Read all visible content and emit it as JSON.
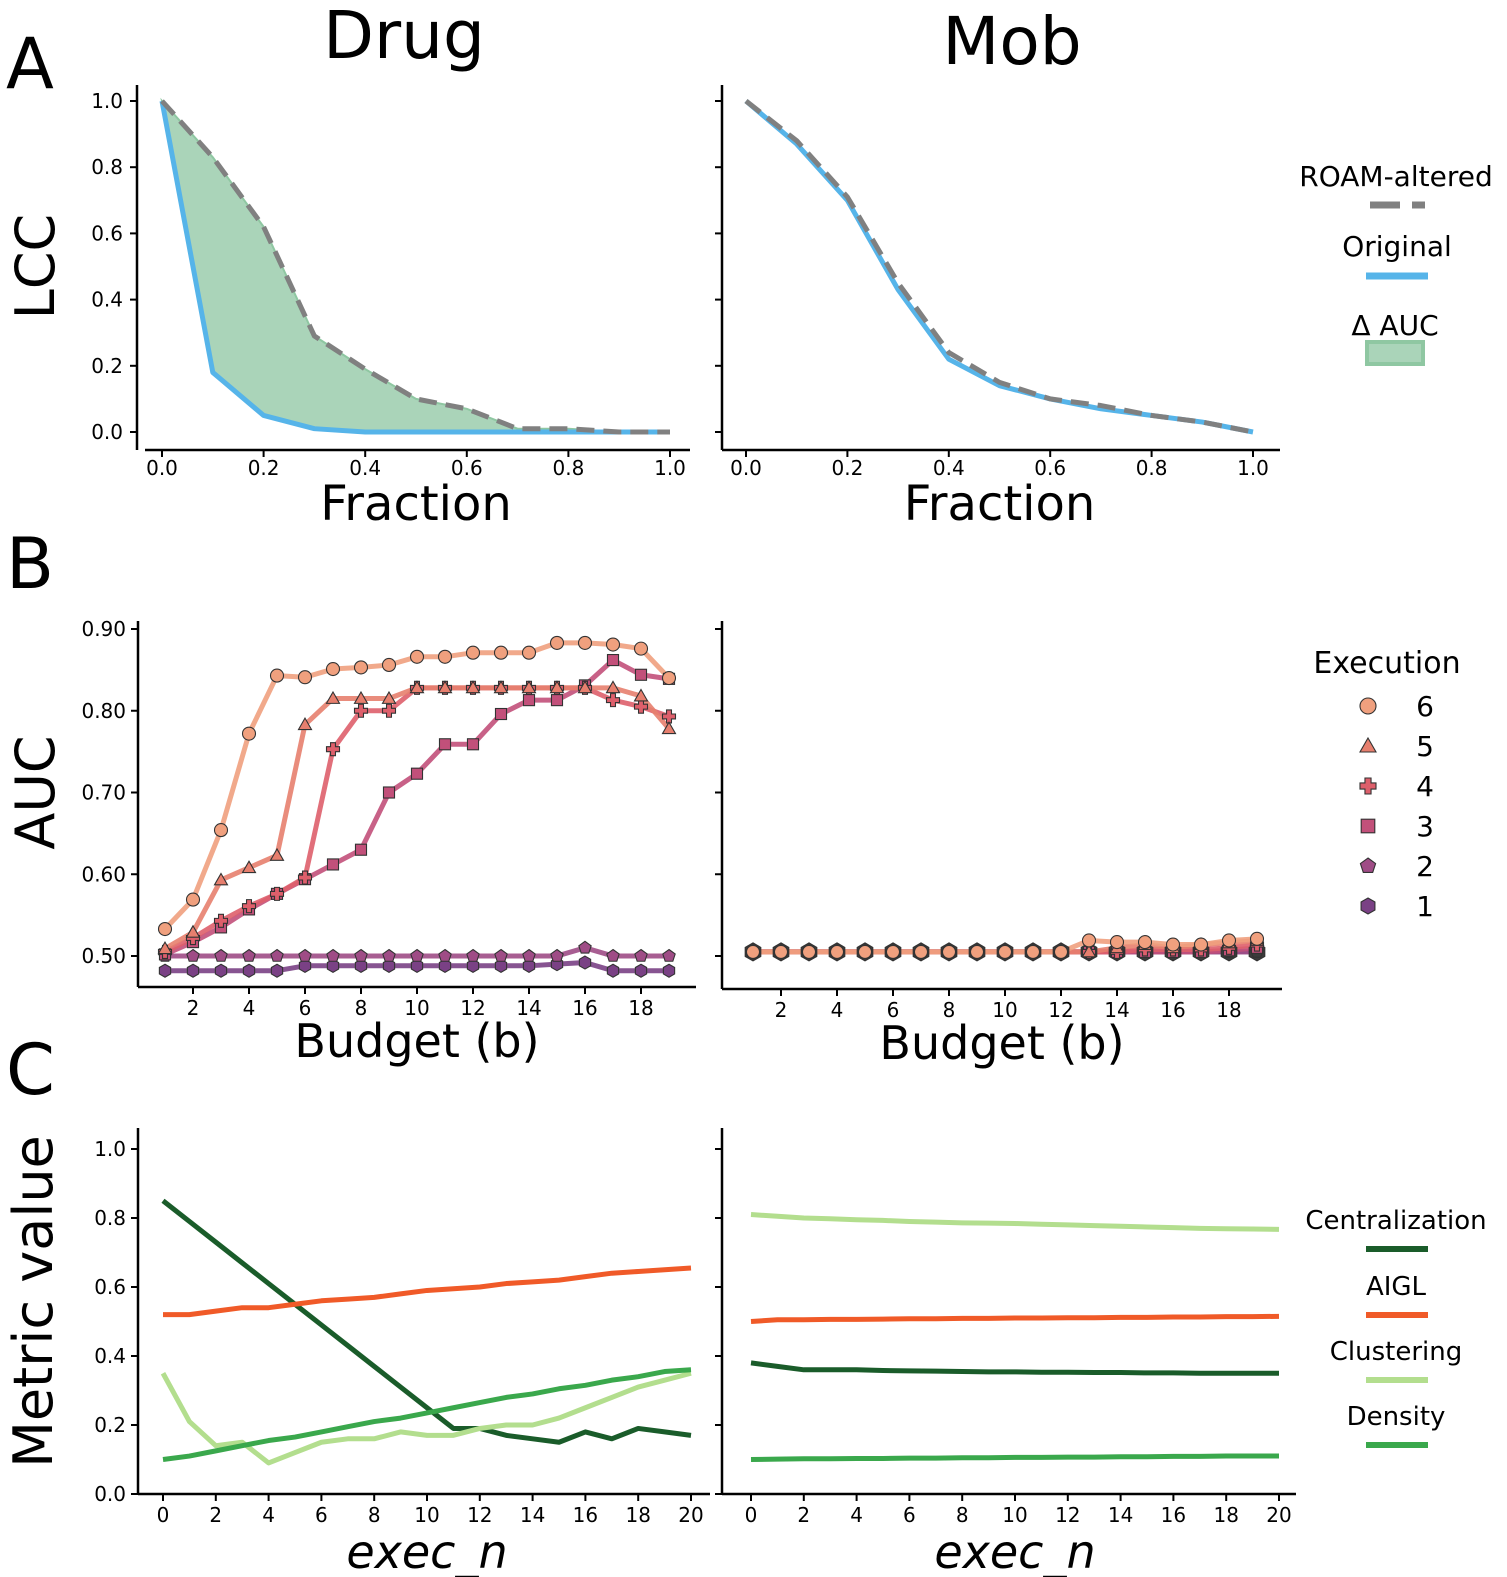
{
  "columns": [
    "Drug",
    "Mob"
  ],
  "panel_letters": [
    "A",
    "B",
    "C"
  ],
  "legends": {
    "A": {
      "items": [
        "ROAM-altered",
        "Original",
        "Δ AUC"
      ]
    },
    "B": {
      "title": "Execution",
      "items": [
        "6",
        "5",
        "4",
        "3",
        "2",
        "1"
      ]
    },
    "C": {
      "items": [
        "Centralization",
        "AIGL",
        "Clustering",
        "Density"
      ]
    }
  },
  "colors": {
    "roam": "#808080",
    "original": "#56b4e9",
    "delta_fill": "#aad4b9",
    "delta_edge": "#8fc7a2",
    "exec6": "#f0a07e",
    "exec5": "#e77f6e",
    "exec4": "#de5f6b",
    "exec3": "#c2507a",
    "exec2": "#9f4c86",
    "exec1": "#7a4185",
    "centralization": "#1a5c2a",
    "aigl": "#f05a28",
    "clustering": "#b3de8e",
    "density": "#3aa84c"
  },
  "chart_data": [
    {
      "id": "A-Drug",
      "type": "area",
      "xlabel": "Fraction",
      "ylabel": "LCC",
      "xlim": [
        0,
        1
      ],
      "ylim": [
        0,
        1
      ],
      "xticks": [
        "0.0",
        "0.2",
        "0.4",
        "0.6",
        "0.8",
        "1.0"
      ],
      "yticks": [
        "0.0",
        "0.2",
        "0.4",
        "0.6",
        "0.8",
        "1.0"
      ],
      "x": [
        0,
        0.1,
        0.2,
        0.3,
        0.4,
        0.5,
        0.6,
        0.7,
        0.8,
        0.9,
        1.0
      ],
      "series": [
        {
          "name": "ROAM-altered",
          "values": [
            1.0,
            0.83,
            0.62,
            0.29,
            0.19,
            0.1,
            0.07,
            0.01,
            0.01,
            0.0,
            0.0
          ]
        },
        {
          "name": "Original",
          "values": [
            1.0,
            0.18,
            0.05,
            0.01,
            0.0,
            0.0,
            0.0,
            0.0,
            0.0,
            0.0,
            0.0
          ]
        }
      ]
    },
    {
      "id": "A-Mob",
      "type": "line",
      "xlabel": "Fraction",
      "xlim": [
        0,
        1
      ],
      "ylim": [
        0,
        1
      ],
      "xticks": [
        "0.0",
        "0.2",
        "0.4",
        "0.6",
        "0.8",
        "1.0"
      ],
      "x": [
        0,
        0.1,
        0.2,
        0.3,
        0.4,
        0.5,
        0.6,
        0.7,
        0.8,
        0.9,
        1.0
      ],
      "series": [
        {
          "name": "ROAM-altered",
          "values": [
            1.0,
            0.88,
            0.71,
            0.45,
            0.24,
            0.15,
            0.1,
            0.08,
            0.05,
            0.03,
            0.0
          ]
        },
        {
          "name": "Original",
          "values": [
            1.0,
            0.87,
            0.7,
            0.43,
            0.22,
            0.14,
            0.1,
            0.07,
            0.05,
            0.03,
            0.0
          ]
        }
      ]
    },
    {
      "id": "B-Drug",
      "type": "line",
      "xlabel": "Budget (b)",
      "ylabel": "AUC",
      "xlim": [
        0.5,
        19.5
      ],
      "ylim": [
        0.48,
        0.9
      ],
      "xticks": [
        "2",
        "4",
        "6",
        "8",
        "10",
        "12",
        "14",
        "16",
        "18"
      ],
      "yticks": [
        "0.50",
        "0.60",
        "0.70",
        "0.80",
        "0.90"
      ],
      "x": [
        1,
        2,
        3,
        4,
        5,
        6,
        7,
        8,
        9,
        10,
        11,
        12,
        13,
        14,
        15,
        16,
        17,
        18,
        19
      ],
      "series": [
        {
          "name": "6",
          "values": [
            0.533,
            0.569,
            0.654,
            0.772,
            0.843,
            0.841,
            0.851,
            0.853,
            0.856,
            0.866,
            0.866,
            0.871,
            0.871,
            0.871,
            0.883,
            0.883,
            0.881,
            0.876,
            0.84
          ]
        },
        {
          "name": "5",
          "values": [
            0.509,
            0.529,
            0.593,
            0.608,
            0.623,
            0.783,
            0.815,
            0.815,
            0.815,
            0.828,
            0.828,
            0.828,
            0.828,
            0.828,
            0.828,
            0.828,
            0.828,
            0.818,
            0.778
          ]
        },
        {
          "name": "4",
          "values": [
            0.505,
            0.522,
            0.543,
            0.561,
            0.576,
            0.596,
            0.753,
            0.8,
            0.8,
            0.828,
            0.828,
            0.828,
            0.828,
            0.828,
            0.828,
            0.828,
            0.813,
            0.805,
            0.793
          ]
        },
        {
          "name": "3",
          "values": [
            0.502,
            0.517,
            0.535,
            0.557,
            0.576,
            0.594,
            0.612,
            0.63,
            0.7,
            0.723,
            0.759,
            0.759,
            0.796,
            0.813,
            0.813,
            0.831,
            0.862,
            0.844,
            0.839
          ]
        },
        {
          "name": "2",
          "values": [
            0.5,
            0.5,
            0.5,
            0.5,
            0.5,
            0.5,
            0.5,
            0.5,
            0.5,
            0.5,
            0.5,
            0.5,
            0.5,
            0.5,
            0.5,
            0.51,
            0.5,
            0.5,
            0.5
          ]
        },
        {
          "name": "1",
          "values": [
            0.482,
            0.482,
            0.482,
            0.482,
            0.482,
            0.488,
            0.488,
            0.488,
            0.488,
            0.488,
            0.488,
            0.488,
            0.488,
            0.488,
            0.49,
            0.492,
            0.482,
            0.482,
            0.482
          ]
        }
      ]
    },
    {
      "id": "B-Mob",
      "type": "line",
      "xlabel": "Budget (b)",
      "xlim": [
        0.5,
        19.5
      ],
      "ylim": [
        0.48,
        0.9
      ],
      "xticks": [
        "2",
        "4",
        "6",
        "8",
        "10",
        "12",
        "14",
        "16",
        "18"
      ],
      "x": [
        1,
        2,
        3,
        4,
        5,
        6,
        7,
        8,
        9,
        10,
        11,
        12,
        13,
        14,
        15,
        16,
        17,
        18,
        19
      ],
      "series": [
        {
          "name": "6",
          "values": [
            0.505,
            0.505,
            0.505,
            0.505,
            0.505,
            0.505,
            0.505,
            0.505,
            0.505,
            0.505,
            0.505,
            0.505,
            0.519,
            0.517,
            0.517,
            0.514,
            0.514,
            0.519,
            0.521
          ]
        },
        {
          "name": "5",
          "values": [
            0.505,
            0.505,
            0.505,
            0.505,
            0.505,
            0.505,
            0.505,
            0.505,
            0.505,
            0.505,
            0.505,
            0.505,
            0.505,
            0.51,
            0.514,
            0.51,
            0.514,
            0.516,
            0.519
          ]
        },
        {
          "name": "4",
          "values": [
            0.505,
            0.505,
            0.505,
            0.505,
            0.505,
            0.505,
            0.505,
            0.505,
            0.505,
            0.505,
            0.505,
            0.505,
            0.505,
            0.505,
            0.508,
            0.508,
            0.508,
            0.51,
            0.514
          ]
        },
        {
          "name": "3",
          "values": [
            0.505,
            0.505,
            0.505,
            0.505,
            0.505,
            0.505,
            0.505,
            0.505,
            0.505,
            0.505,
            0.505,
            0.505,
            0.505,
            0.505,
            0.505,
            0.505,
            0.505,
            0.507,
            0.51
          ]
        },
        {
          "name": "2",
          "values": [
            0.505,
            0.505,
            0.505,
            0.505,
            0.505,
            0.505,
            0.505,
            0.505,
            0.505,
            0.505,
            0.505,
            0.505,
            0.505,
            0.505,
            0.505,
            0.505,
            0.505,
            0.505,
            0.505
          ]
        },
        {
          "name": "1",
          "values": [
            0.505,
            0.505,
            0.505,
            0.505,
            0.505,
            0.505,
            0.505,
            0.505,
            0.505,
            0.505,
            0.505,
            0.505,
            0.505,
            0.505,
            0.505,
            0.505,
            0.505,
            0.505,
            0.505
          ]
        }
      ]
    },
    {
      "id": "C-Drug",
      "type": "line",
      "xlabel": "exec_n",
      "ylabel": "Metric value",
      "xlim": [
        -0.5,
        20.5
      ],
      "ylim": [
        0,
        1.05
      ],
      "xticks": [
        "0",
        "2",
        "4",
        "6",
        "8",
        "10",
        "12",
        "14",
        "16",
        "18",
        "20"
      ],
      "yticks": [
        "0.0",
        "0.2",
        "0.4",
        "0.6",
        "0.8",
        "1.0"
      ],
      "x": [
        0,
        1,
        2,
        3,
        4,
        5,
        6,
        7,
        8,
        9,
        10,
        11,
        12,
        13,
        14,
        15,
        16,
        17,
        18,
        19,
        20
      ],
      "series": [
        {
          "name": "Centralization",
          "values": [
            0.85,
            0.79,
            0.73,
            0.67,
            0.61,
            0.55,
            0.49,
            0.43,
            0.37,
            0.31,
            0.25,
            0.19,
            0.19,
            0.17,
            0.16,
            0.15,
            0.18,
            0.16,
            0.19,
            0.18,
            0.17
          ]
        },
        {
          "name": "AIGL",
          "values": [
            0.52,
            0.52,
            0.53,
            0.54,
            0.54,
            0.55,
            0.56,
            0.565,
            0.57,
            0.58,
            0.59,
            0.595,
            0.6,
            0.61,
            0.615,
            0.62,
            0.63,
            0.64,
            0.645,
            0.65,
            0.655
          ]
        },
        {
          "name": "Clustering",
          "values": [
            0.35,
            0.21,
            0.14,
            0.15,
            0.09,
            0.12,
            0.15,
            0.16,
            0.16,
            0.18,
            0.17,
            0.17,
            0.19,
            0.2,
            0.2,
            0.22,
            0.25,
            0.28,
            0.31,
            0.33,
            0.35
          ]
        },
        {
          "name": "Density",
          "values": [
            0.1,
            0.11,
            0.125,
            0.14,
            0.155,
            0.165,
            0.18,
            0.195,
            0.21,
            0.22,
            0.235,
            0.25,
            0.265,
            0.28,
            0.29,
            0.305,
            0.315,
            0.33,
            0.34,
            0.355,
            0.36
          ]
        }
      ]
    },
    {
      "id": "C-Mob",
      "type": "line",
      "xlabel": "exec_n",
      "xlim": [
        -0.5,
        20.5
      ],
      "ylim": [
        0,
        1.05
      ],
      "xticks": [
        "0",
        "2",
        "4",
        "6",
        "8",
        "10",
        "12",
        "14",
        "16",
        "18",
        "20"
      ],
      "x": [
        0,
        1,
        2,
        3,
        4,
        5,
        6,
        7,
        8,
        9,
        10,
        11,
        12,
        13,
        14,
        15,
        16,
        17,
        18,
        19,
        20
      ],
      "series": [
        {
          "name": "Centralization",
          "values": [
            0.38,
            0.37,
            0.36,
            0.36,
            0.36,
            0.358,
            0.357,
            0.356,
            0.355,
            0.354,
            0.354,
            0.353,
            0.353,
            0.352,
            0.352,
            0.351,
            0.351,
            0.35,
            0.35,
            0.35,
            0.35
          ]
        },
        {
          "name": "AIGL",
          "values": [
            0.5,
            0.505,
            0.505,
            0.506,
            0.506,
            0.507,
            0.508,
            0.508,
            0.509,
            0.509,
            0.51,
            0.51,
            0.511,
            0.511,
            0.512,
            0.512,
            0.513,
            0.513,
            0.514,
            0.514,
            0.515
          ]
        },
        {
          "name": "Clustering",
          "values": [
            0.81,
            0.805,
            0.8,
            0.798,
            0.795,
            0.793,
            0.79,
            0.788,
            0.786,
            0.785,
            0.784,
            0.782,
            0.78,
            0.778,
            0.776,
            0.774,
            0.772,
            0.77,
            0.769,
            0.768,
            0.767
          ]
        },
        {
          "name": "Density",
          "values": [
            0.1,
            0.101,
            0.102,
            0.102,
            0.103,
            0.103,
            0.104,
            0.104,
            0.105,
            0.105,
            0.106,
            0.106,
            0.107,
            0.107,
            0.108,
            0.108,
            0.109,
            0.109,
            0.11,
            0.11,
            0.11
          ]
        }
      ]
    }
  ]
}
